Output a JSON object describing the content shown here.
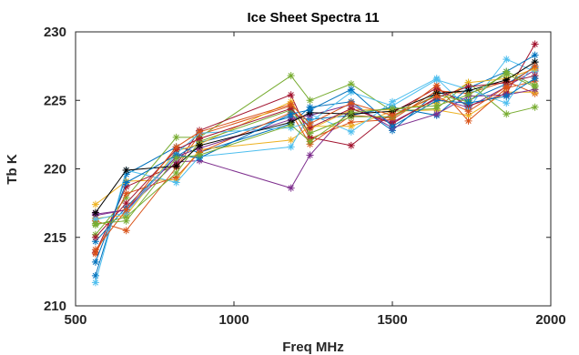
{
  "chart_data": {
    "type": "line",
    "title": "Ice Sheet Spectra 11",
    "xlabel": "Freq MHz",
    "ylabel": "Tb K",
    "xlim": [
      500,
      2000
    ],
    "ylim": [
      210,
      230
    ],
    "xticks": [
      500,
      1000,
      1500,
      2000
    ],
    "yticks": [
      210,
      215,
      220,
      225,
      230
    ],
    "grid": false,
    "x": [
      563,
      660,
      818,
      891,
      1180,
      1240,
      1370,
      1500,
      1640,
      1740,
      1860,
      1950
    ],
    "series": [
      {
        "color": "#0072BD",
        "marker": "*",
        "values": [
          212.2,
          219.6,
          221.6,
          221.2,
          223.3,
          224.5,
          224.9,
          222.8,
          225.6,
          225.0,
          226.2,
          227.4
        ]
      },
      {
        "color": "#D95319",
        "marker": "*",
        "values": [
          216.2,
          215.5,
          220.1,
          222.5,
          224.6,
          222.2,
          223.4,
          223.6,
          225.7,
          225.5,
          226.4,
          225.5
        ]
      },
      {
        "color": "#EDB120",
        "marker": "*",
        "values": [
          217.4,
          219.1,
          219.2,
          221.4,
          222.1,
          223.1,
          223.1,
          224.2,
          224.3,
          223.9,
          225.6,
          225.6
        ]
      },
      {
        "color": "#7E2F8E",
        "marker": "*",
        "values": [
          216.7,
          217.0,
          220.5,
          220.6,
          218.6,
          221.0,
          224.4,
          223.4,
          225.1,
          224.5,
          226.0,
          227.2
        ]
      },
      {
        "color": "#77AC30",
        "marker": "*",
        "values": [
          215.2,
          217.9,
          222.3,
          222.3,
          226.8,
          225.0,
          226.2,
          224.2,
          224.4,
          226.3,
          224.0,
          224.5
        ]
      },
      {
        "color": "#4DBEEE",
        "marker": "*",
        "values": [
          211.7,
          219.9,
          219.0,
          220.9,
          221.6,
          224.0,
          222.7,
          224.9,
          226.6,
          224.4,
          228.0,
          227.1
        ]
      },
      {
        "color": "#A2142F",
        "marker": "*",
        "values": [
          213.9,
          218.7,
          220.3,
          222.8,
          225.4,
          222.3,
          221.7,
          224.1,
          225.9,
          224.6,
          225.5,
          229.1
        ]
      },
      {
        "color": "#0072BD",
        "marker": "*",
        "values": [
          214.7,
          217.2,
          220.9,
          221.9,
          223.8,
          223.6,
          223.9,
          224.5,
          223.9,
          225.9,
          227.1,
          228.3
        ]
      },
      {
        "color": "#D95319",
        "marker": "*",
        "values": [
          213.8,
          218.2,
          219.4,
          221.2,
          224.1,
          221.8,
          223.9,
          223.7,
          226.1,
          223.5,
          225.9,
          226.4
        ]
      },
      {
        "color": "#EDB120",
        "marker": "*",
        "values": [
          216.4,
          216.6,
          221.3,
          221.8,
          224.9,
          222.9,
          224.3,
          224.3,
          224.8,
          226.3,
          226.6,
          227.3
        ]
      },
      {
        "color": "#7E2F8E",
        "marker": "*",
        "values": [
          216.6,
          217.0,
          220.9,
          221.5,
          223.6,
          223.9,
          224.7,
          223.0,
          224.0,
          225.3,
          225.4,
          225.8
        ]
      },
      {
        "color": "#77AC30",
        "marker": "*",
        "values": [
          215.9,
          216.5,
          219.7,
          222.0,
          224.3,
          222.6,
          223.8,
          223.8,
          225.4,
          224.9,
          227.1,
          226.1
        ]
      },
      {
        "color": "#4DBEEE",
        "marker": "*",
        "values": [
          216.3,
          216.8,
          221.1,
          222.6,
          223.0,
          223.4,
          225.6,
          224.6,
          226.5,
          225.8,
          224.8,
          227.8
        ]
      },
      {
        "color": "#A2142F",
        "marker": "*",
        "values": [
          215.0,
          217.5,
          221.4,
          222.2,
          224.4,
          223.0,
          224.4,
          223.3,
          225.2,
          226.0,
          226.3,
          226.8
        ]
      },
      {
        "color": "#000000",
        "marker": "*",
        "values": [
          216.8,
          219.9,
          220.2,
          221.7,
          223.4,
          224.1,
          224.0,
          224.2,
          225.5,
          225.7,
          226.5,
          227.8
        ]
      },
      {
        "color": "#0072BD",
        "marker": "*",
        "values": [
          213.2,
          219.0,
          221.0,
          220.8,
          224.0,
          224.3,
          225.8,
          223.1,
          225.0,
          224.8,
          225.3,
          226.6
        ]
      },
      {
        "color": "#D95319",
        "marker": "*",
        "values": [
          214.1,
          217.0,
          221.6,
          222.7,
          224.7,
          223.3,
          224.8,
          223.9,
          225.3,
          224.2,
          226.0,
          227.5
        ]
      },
      {
        "color": "#77AC30",
        "marker": "*",
        "values": [
          216.0,
          216.2,
          220.8,
          221.0,
          223.2,
          222.0,
          224.1,
          224.4,
          224.6,
          225.4,
          226.9,
          226.0
        ]
      }
    ]
  }
}
